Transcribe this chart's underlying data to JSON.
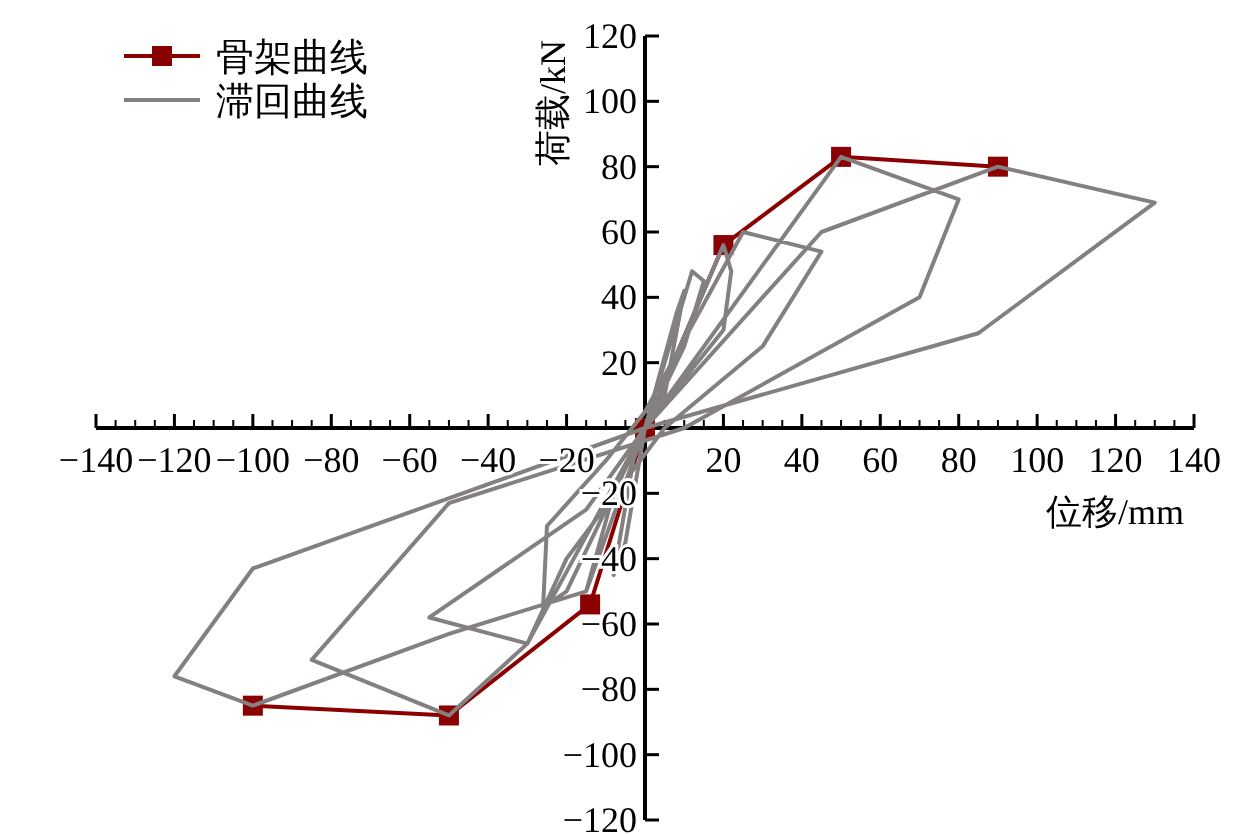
{
  "chart_data": {
    "type": "line",
    "xlabel": "位移/mm",
    "ylabel": "荷载/kN",
    "xlim": [
      -140,
      140
    ],
    "ylim": [
      -120,
      120
    ],
    "xticks": [
      -140,
      -120,
      -100,
      -80,
      -60,
      -40,
      -20,
      {
        "value": 0,
        "label": null
      },
      20,
      40,
      60,
      80,
      100,
      120,
      140
    ],
    "yticks": [
      -120,
      -100,
      -80,
      -60,
      -40,
      -20,
      20,
      40,
      60,
      80,
      100,
      120
    ],
    "legend": "top left",
    "grid": false,
    "series": [
      {
        "name": "骨架曲线",
        "color": "#8b0000",
        "marker": "square",
        "x": [
          -100,
          -50,
          -14,
          0,
          20,
          50,
          90
        ],
        "values": [
          -85,
          -88,
          -54,
          0,
          56,
          83,
          80
        ]
      },
      {
        "name": "滞回曲线",
        "color": "#848080",
        "marker": "none",
        "x": [
          0,
          8,
          10,
          5,
          0,
          -5,
          -8,
          -3,
          0,
          12,
          15,
          10,
          0,
          -12,
          -15,
          -8,
          0,
          20,
          22,
          20,
          0,
          -20,
          -26,
          -25,
          -10,
          0,
          25,
          45,
          30,
          5,
          -20,
          -30,
          -55,
          -15,
          0,
          50,
          80,
          70,
          10,
          -50,
          -85,
          -50,
          -30,
          0,
          45,
          90,
          130,
          85,
          0,
          -100,
          -120,
          -100,
          -50,
          -15
        ],
        "values": [
          0,
          35,
          42,
          10,
          0,
          -35,
          -45,
          -10,
          0,
          48,
          45,
          25,
          0,
          -40,
          -50,
          -20,
          0,
          56,
          48,
          30,
          0,
          -50,
          -55,
          -30,
          -10,
          5,
          60,
          54,
          25,
          0,
          -40,
          -66,
          -58,
          -25,
          0,
          83,
          70,
          40,
          0,
          -23,
          -71,
          -88,
          -66,
          0,
          60,
          80,
          69,
          29,
          0,
          -43,
          -76,
          -85,
          -63,
          -50
        ]
      }
    ]
  }
}
